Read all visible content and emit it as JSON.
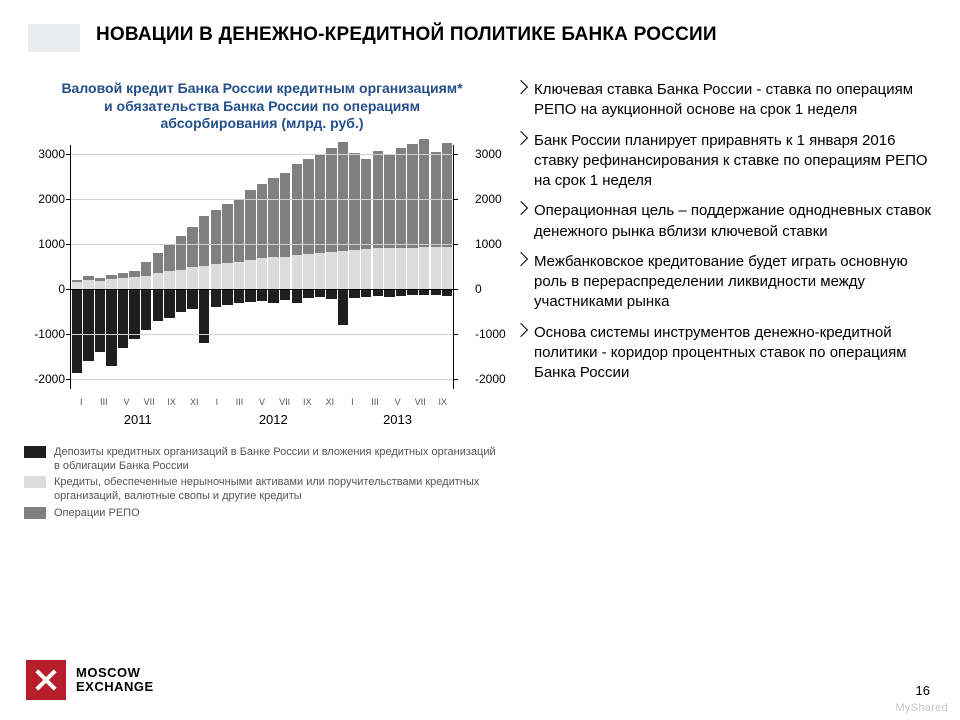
{
  "header": {
    "title": "НОВАЦИИ В ДЕНЕЖНО-КРЕДИТНОЙ ПОЛИТИКЕ БАНКА РОССИИ"
  },
  "chart": {
    "type": "stacked-bar",
    "title_line1": "Валовой кредит Банка России кредитным организациям*",
    "title_line2": "и обязательства Банка России по операциям",
    "title_line3": "абсорбирования (млрд. руб.)",
    "title_color": "#244f8a",
    "ylim": [
      -2200,
      3200
    ],
    "yticks": [
      -2000,
      -1000,
      0,
      1000,
      2000,
      3000
    ],
    "zero": 0,
    "background_color": "#ffffff",
    "grid_color": "#d0d0d0",
    "axis_color": "#000000",
    "month_labels": [
      "I",
      "III",
      "V",
      "VII",
      "IX",
      "XI",
      "I",
      "III",
      "V",
      "VII",
      "IX",
      "XI",
      "I",
      "III",
      "V",
      "VII",
      "IX"
    ],
    "year_labels": [
      "2011",
      "2012",
      "2013"
    ],
    "year_spans": [
      6,
      6,
      5
    ],
    "series": {
      "deposits_color": "#1f1f1f",
      "credits_color": "#dcdcdc",
      "repo_color": "#808080"
    },
    "bars": [
      {
        "dep": -1850,
        "cred": 150,
        "repo": 50
      },
      {
        "dep": -1600,
        "cred": 200,
        "repo": 80
      },
      {
        "dep": -1400,
        "cred": 180,
        "repo": 60
      },
      {
        "dep": -1700,
        "cred": 220,
        "repo": 90
      },
      {
        "dep": -1300,
        "cred": 240,
        "repo": 120
      },
      {
        "dep": -1100,
        "cred": 260,
        "repo": 150
      },
      {
        "dep": -900,
        "cred": 300,
        "repo": 300
      },
      {
        "dep": -700,
        "cred": 350,
        "repo": 450
      },
      {
        "dep": -650,
        "cred": 400,
        "repo": 600
      },
      {
        "dep": -500,
        "cred": 420,
        "repo": 750
      },
      {
        "dep": -450,
        "cred": 480,
        "repo": 900
      },
      {
        "dep": -1200,
        "cred": 520,
        "repo": 1100
      },
      {
        "dep": -400,
        "cred": 550,
        "repo": 1200
      },
      {
        "dep": -350,
        "cred": 580,
        "repo": 1300
      },
      {
        "dep": -300,
        "cred": 600,
        "repo": 1400
      },
      {
        "dep": -280,
        "cred": 650,
        "repo": 1550
      },
      {
        "dep": -260,
        "cred": 680,
        "repo": 1650
      },
      {
        "dep": -300,
        "cred": 700,
        "repo": 1750
      },
      {
        "dep": -250,
        "cred": 720,
        "repo": 1850
      },
      {
        "dep": -300,
        "cred": 760,
        "repo": 2000
      },
      {
        "dep": -200,
        "cred": 780,
        "repo": 2100
      },
      {
        "dep": -180,
        "cred": 800,
        "repo": 2200
      },
      {
        "dep": -220,
        "cred": 820,
        "repo": 2300
      },
      {
        "dep": -800,
        "cred": 850,
        "repo": 2400
      },
      {
        "dep": -200,
        "cred": 870,
        "repo": 2150
      },
      {
        "dep": -180,
        "cred": 880,
        "repo": 2000
      },
      {
        "dep": -160,
        "cred": 900,
        "repo": 2150
      },
      {
        "dep": -170,
        "cred": 900,
        "repo": 2100
      },
      {
        "dep": -150,
        "cred": 920,
        "repo": 2200
      },
      {
        "dep": -140,
        "cred": 920,
        "repo": 2300
      },
      {
        "dep": -130,
        "cred": 930,
        "repo": 2400
      },
      {
        "dep": -120,
        "cred": 940,
        "repo": 2100
      },
      {
        "dep": -150,
        "cred": 940,
        "repo": 2300
      }
    ],
    "legend": [
      {
        "swatch": "#1f1f1f",
        "text": "Депозиты кредитных организаций в Банке России и вложения кредитных организаций в облигации Банка России"
      },
      {
        "swatch": "#dcdcdc",
        "text": "Кредиты, обеспеченные нерыночными активами или поручительствами кредитных организаций, валютные свопы и другие кредиты"
      },
      {
        "swatch": "#808080",
        "text": "Операции РЕПО"
      }
    ]
  },
  "bullets": [
    "Ключевая ставка Банка России - ставка по операциям РЕПО на аукционной основе на срок 1 неделя",
    "Банк России планирует приравнять к 1 января 2016 ставку рефинансирования к ставке по операциям РЕПО на срок 1 неделя",
    "Операционная цель – поддержание однодневных ставок денежного рынка вблизи ключевой ставки",
    "Межбанковское кредитование будет играть основную роль в перераспределении ликвидности между участниками рынка",
    "Основа системы инструментов денежно-кредитной политики - коридор процентных ставок по операциям Банка России"
  ],
  "footer": {
    "logo_line1": "MOSCOW",
    "logo_line2": "EXCHANGE",
    "page_number": "16",
    "watermark": "MyShared"
  }
}
